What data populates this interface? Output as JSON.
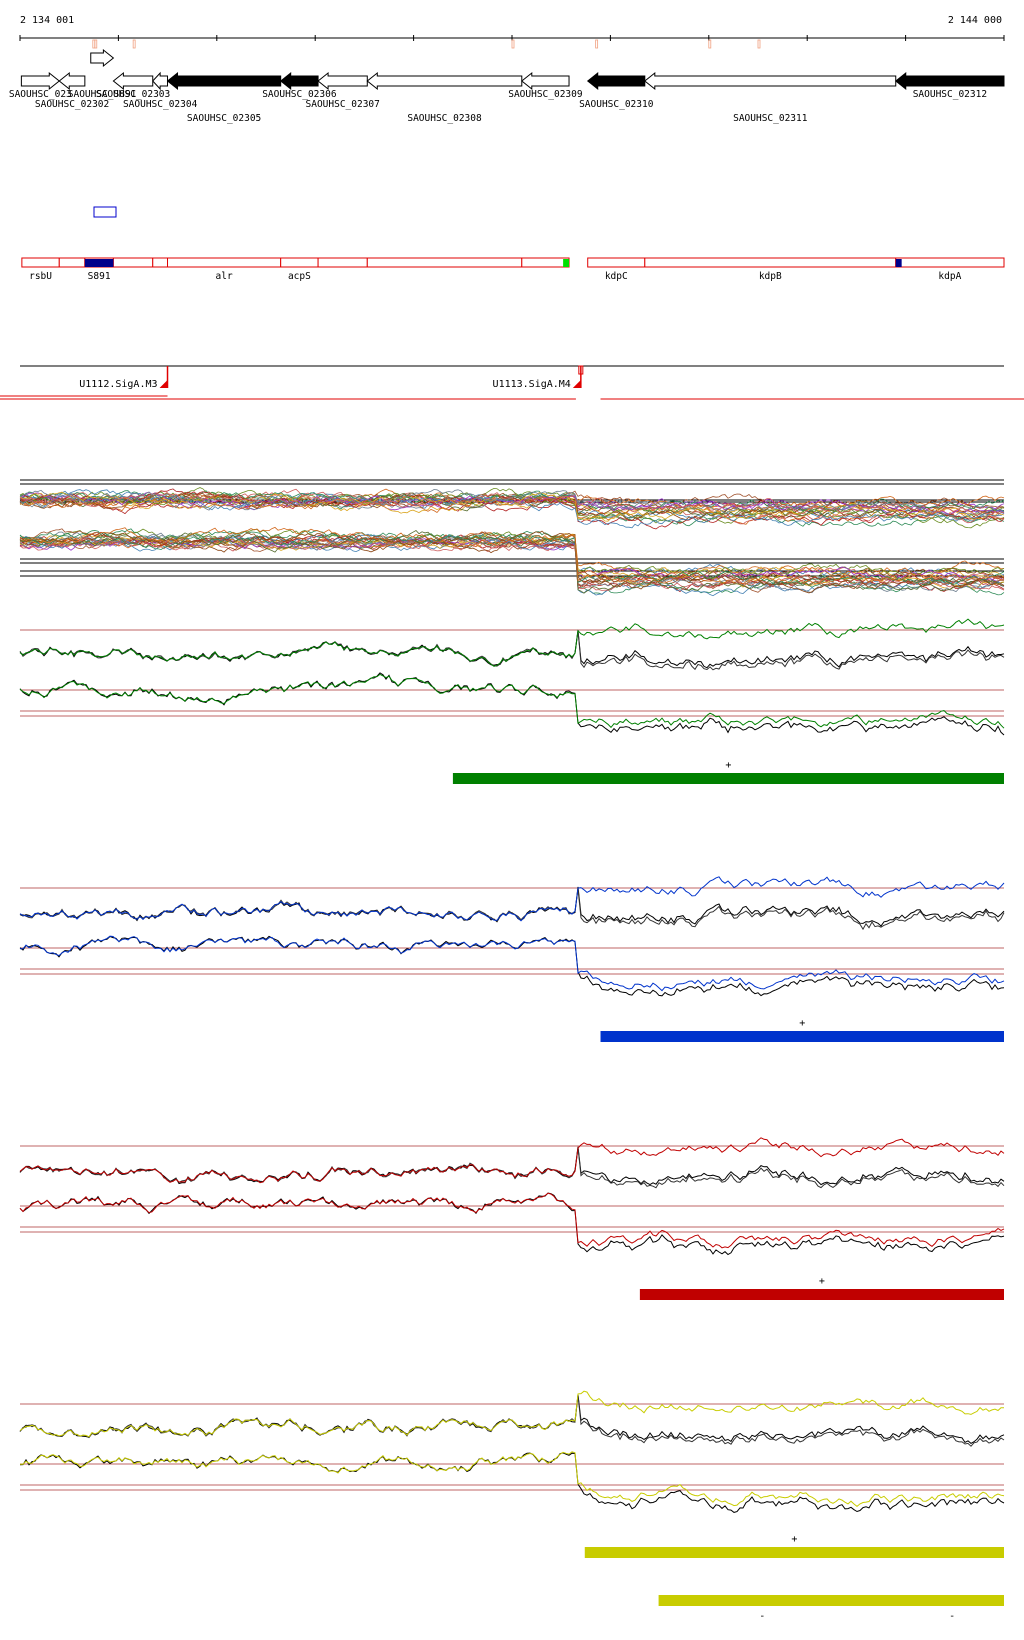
{
  "coords": {
    "start": "2 134 001",
    "end": "2 144 000",
    "start_bp": 2134001,
    "end_bp": 2144000
  },
  "colors": {
    "forward_gene": "#ffffff",
    "reverse_gene": "#000000",
    "annotation": "#e00000",
    "green": "#008000",
    "blue": "#0033cc",
    "red": "#c00000",
    "yellow": "#c8cc00",
    "dark_blue_block": "#00008b",
    "bright_green_block": "#00e000"
  },
  "genes": [
    {
      "id": "SAOUHSC_02301",
      "label": "SAOUHSC_023",
      "from": 2134015,
      "to": 2134400,
      "strand": "+",
      "fill": "white",
      "row": 0
    },
    {
      "id": "SAOUHSC_02302",
      "label": "SAOUHSC_02302",
      "from": 2134400,
      "to": 2134660,
      "strand": "-",
      "fill": "white",
      "row": 1
    },
    {
      "id": "SAOUHSC_S891",
      "label": "SAOUHSC_S891",
      "from": 2134720,
      "to": 2134950,
      "strand": "+",
      "fill": "white",
      "row": 0,
      "raised": true
    },
    {
      "id": "SAOUHSC_02303",
      "label": "SAOUHSC_02303",
      "from": 2134950,
      "to": 2135350,
      "strand": "-",
      "fill": "white",
      "row": 0
    },
    {
      "id": "SAOUHSC_02304",
      "label": "SAOUHSC_02304",
      "from": 2135350,
      "to": 2135500,
      "strand": "-",
      "fill": "white",
      "row": 1
    },
    {
      "id": "SAOUHSC_02305",
      "label": "SAOUHSC_02305",
      "from": 2135500,
      "to": 2136650,
      "strand": "-",
      "fill": "black",
      "row": 2
    },
    {
      "id": "SAOUHSC_02306",
      "label": "SAOUHSC_02306",
      "from": 2136650,
      "to": 2137030,
      "strand": "-",
      "fill": "black",
      "row": 0
    },
    {
      "id": "SAOUHSC_02307",
      "label": "SAOUHSC_02307",
      "from": 2137030,
      "to": 2137530,
      "strand": "-",
      "fill": "white",
      "row": 1
    },
    {
      "id": "SAOUHSC_02308",
      "label": "SAOUHSC_02308",
      "from": 2137530,
      "to": 2139100,
      "strand": "-",
      "fill": "white",
      "row": 2
    },
    {
      "id": "SAOUHSC_02309",
      "label": "SAOUHSC_02309",
      "from": 2139100,
      "to": 2139580,
      "strand": "-",
      "fill": "white",
      "row": 0
    },
    {
      "id": "SAOUHSC_02310",
      "label": "SAOUHSC_02310",
      "from": 2139770,
      "to": 2140350,
      "strand": "-",
      "fill": "black",
      "row": 1
    },
    {
      "id": "SAOUHSC_02311",
      "label": "SAOUHSC_02311",
      "from": 2140350,
      "to": 2142900,
      "strand": "-",
      "fill": "white",
      "row": 2
    },
    {
      "id": "SAOUHSC_02312",
      "label": "SAOUHSC_02312",
      "from": 2142900,
      "to": 2144000,
      "strand": "-",
      "fill": "black",
      "row": 0
    }
  ],
  "features": [
    {
      "label": "rsbU",
      "from": 2134020,
      "to": 2134400
    },
    {
      "label": "",
      "from": 2134400,
      "to": 2134660
    },
    {
      "label": "S891",
      "from": 2134660,
      "to": 2134950,
      "filled": "#00008b"
    },
    {
      "label": "",
      "from": 2134950,
      "to": 2135350
    },
    {
      "label": "",
      "from": 2135350,
      "to": 2135500
    },
    {
      "label": "alr",
      "from": 2135500,
      "to": 2136650
    },
    {
      "label": "acpS",
      "from": 2136650,
      "to": 2137030
    },
    {
      "label": "",
      "from": 2137030,
      "to": 2137530
    },
    {
      "label": "",
      "from": 2137530,
      "to": 2139100
    },
    {
      "label": "",
      "from": 2139100,
      "to": 2139580
    },
    {
      "label": "kdpC",
      "from": 2139770,
      "to": 2140350
    },
    {
      "label": "kdpB",
      "from": 2140350,
      "to": 2142900
    },
    {
      "label": "kdpA",
      "from": 2142900,
      "to": 2144000
    }
  ],
  "feature_marks": [
    {
      "at": 2134660,
      "to": 2134950,
      "color": "#00008b"
    },
    {
      "at": 2139520,
      "to": 2139580,
      "color": "#00e000"
    },
    {
      "at": 2142900,
      "to": 2142960,
      "color": "#00008b"
    }
  ],
  "promoters": [
    {
      "label": "U1112.SigA.M3",
      "at": 2135500
    },
    {
      "label": "U1113.SigA.M4",
      "at": 2139700
    }
  ],
  "condition_panels": [
    {
      "name": "green",
      "color": "#008000",
      "strand_sign": "+",
      "bar_from": 2138400,
      "bar_to": 2144000
    },
    {
      "name": "blue",
      "color": "#0033cc",
      "strand_sign": "+",
      "bar_from": 2139900,
      "bar_to": 2144000
    },
    {
      "name": "red",
      "color": "#c00000",
      "strand_sign": "+",
      "bar_from": 2140300,
      "bar_to": 2144000
    },
    {
      "name": "yellow",
      "color": "#c8cc00",
      "strand_sign": "+",
      "bar_from": 2139740,
      "bar_to": 2144000,
      "extra_bar_from": 2140490,
      "extra_bar_to": 2144000,
      "extra_signs": [
        "-",
        "-"
      ]
    }
  ]
}
